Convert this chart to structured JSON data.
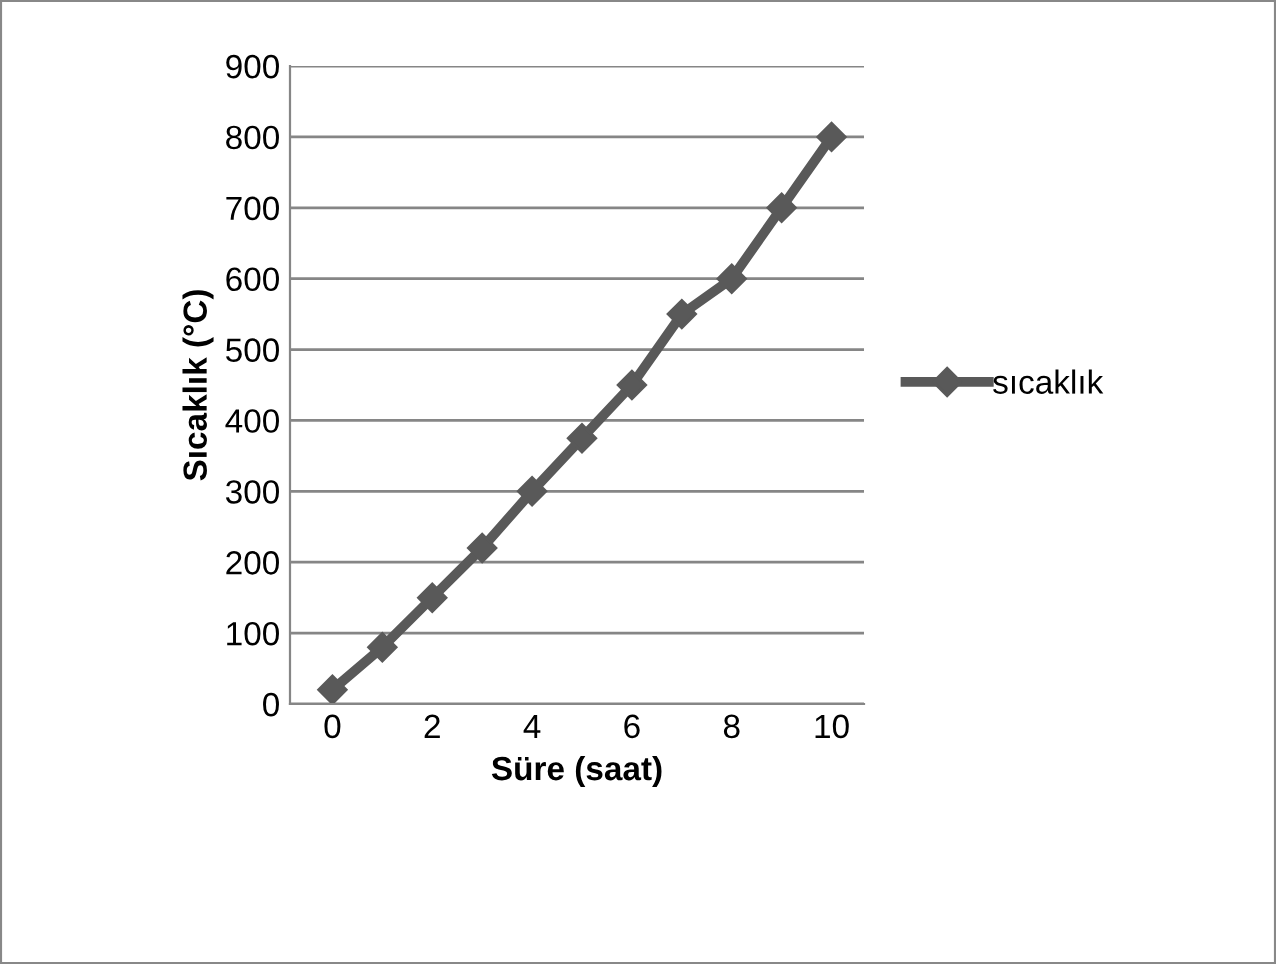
{
  "chart_data": {
    "type": "line",
    "xlabel": "Süre (saat)",
    "ylabel": "Sıcaklık (°C)",
    "x": [
      0,
      1,
      2,
      3,
      4,
      5,
      6,
      7,
      8,
      9,
      10
    ],
    "series": [
      {
        "name": "sıcaklık",
        "color": "#595959",
        "values": [
          20,
          80,
          150,
          220,
          300,
          375,
          450,
          550,
          600,
          700,
          800
        ]
      }
    ],
    "xlim": [
      -0.85,
      10.65
    ],
    "xticks": [
      0,
      2,
      4,
      6,
      8,
      10
    ],
    "ylim": [
      0,
      900
    ],
    "yticks": [
      0,
      100,
      200,
      300,
      400,
      500,
      600,
      700,
      800,
      900
    ],
    "grid": "y",
    "legend": "right",
    "marker": "diamond",
    "line_style": "solid"
  }
}
